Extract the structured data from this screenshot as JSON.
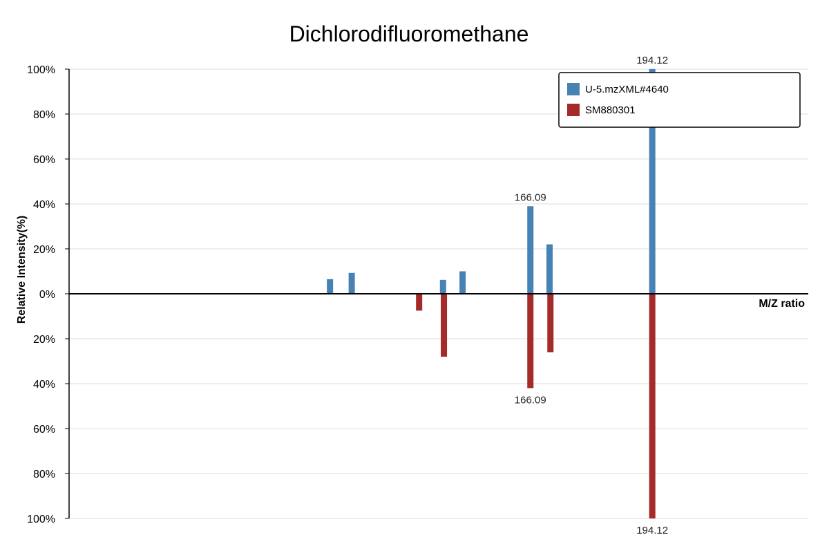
{
  "chart_data": {
    "type": "bar",
    "title": "Dichlorodifluoromethane",
    "xlabel": "M/Z ratio",
    "ylabel": "Relative Intensity(%)",
    "ylim_top": [
      0,
      100
    ],
    "ylim_bottom": [
      0,
      100
    ],
    "y_ticks": [
      "100%",
      "80%",
      "60%",
      "40%",
      "20%",
      "0%",
      "20%",
      "40%",
      "60%",
      "80%",
      "100%"
    ],
    "x_range": [
      60,
      230
    ],
    "grid": true,
    "legend_position": "top-right",
    "series": [
      {
        "name": "U-5.mzXML#4640",
        "color": "#4682b4",
        "direction": "up",
        "points": [
          {
            "mz": 120.0,
            "intensity": 6.5
          },
          {
            "mz": 125.0,
            "intensity": 9.3
          },
          {
            "mz": 146.0,
            "intensity": 6.2
          },
          {
            "mz": 150.5,
            "intensity": 10.0
          },
          {
            "mz": 166.09,
            "intensity": 39.0,
            "label": "166.09"
          },
          {
            "mz": 170.5,
            "intensity": 22.0
          },
          {
            "mz": 194.12,
            "intensity": 100.0,
            "label": "194.12"
          }
        ]
      },
      {
        "name": "SM880301",
        "color": "#a52a2a",
        "direction": "down",
        "points": [
          {
            "mz": 140.5,
            "intensity": 7.5
          },
          {
            "mz": 146.2,
            "intensity": 28.0
          },
          {
            "mz": 166.09,
            "intensity": 42.0,
            "label": "166.09"
          },
          {
            "mz": 170.7,
            "intensity": 26.0
          },
          {
            "mz": 194.12,
            "intensity": 100.0,
            "label": "194.12"
          }
        ]
      }
    ]
  }
}
